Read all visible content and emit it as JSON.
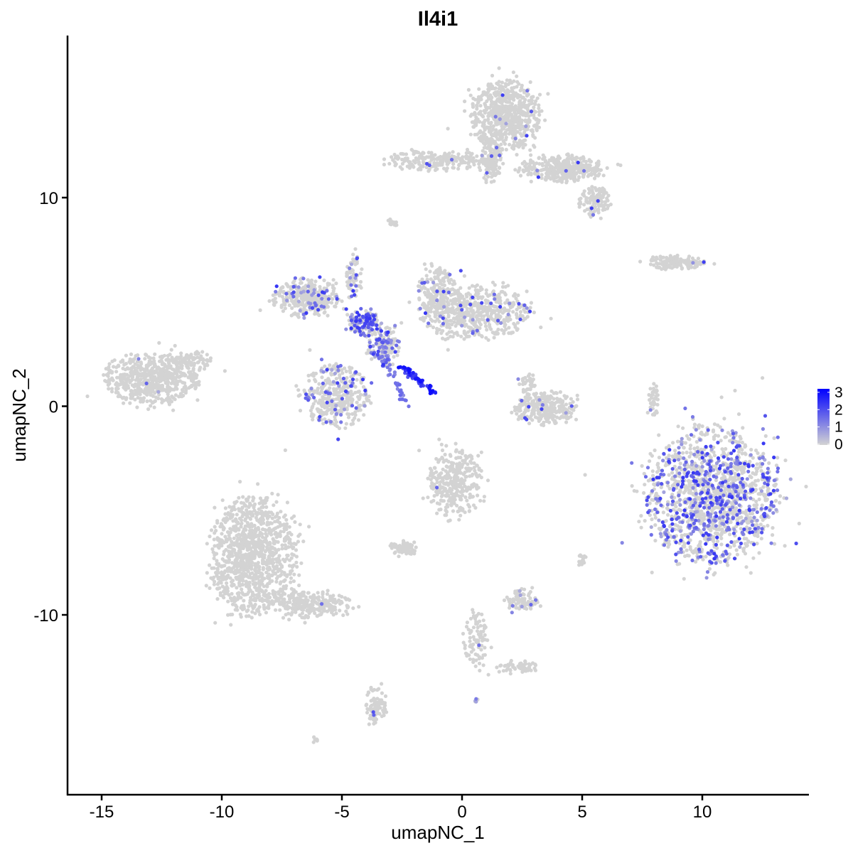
{
  "chart_data": {
    "type": "scatter",
    "title": "Il4i1",
    "xlabel": "umapNC_1",
    "ylabel": "umapNC_2",
    "xlim": [
      -16.4,
      14.4
    ],
    "ylim": [
      -18.2,
      17.8
    ],
    "xticks": [
      -15,
      -10,
      -5,
      0,
      5,
      10
    ],
    "yticks": [
      -10,
      0,
      10
    ],
    "grid": false,
    "legend": {
      "placement": "right",
      "ticks": [
        0,
        1,
        2,
        3
      ],
      "range": [
        0,
        3.2
      ]
    },
    "colors": {
      "low": "#D3D3D3",
      "high": "#0000FF"
    },
    "clusters": [
      {
        "center": [
          1.8,
          13.9
        ],
        "spread": [
          1.35,
          1.6
        ],
        "n": 700,
        "expr_frac": 0.01
      },
      {
        "center": [
          1.2,
          11.8
        ],
        "spread": [
          0.4,
          1.0
        ],
        "n": 120,
        "expr_frac": 0.02
      },
      {
        "center": [
          4.2,
          11.4
        ],
        "spread": [
          1.6,
          0.6
        ],
        "n": 350,
        "expr_frac": 0.01
      },
      {
        "center": [
          5.5,
          9.8
        ],
        "spread": [
          0.6,
          0.7
        ],
        "n": 120,
        "expr_frac": 0.03
      },
      {
        "center": [
          -1.0,
          11.8
        ],
        "spread": [
          2.0,
          0.45
        ],
        "n": 220,
        "expr_frac": 0.02
      },
      {
        "center": [
          -2.9,
          8.8
        ],
        "spread": [
          0.2,
          0.2
        ],
        "n": 15,
        "expr_frac": 0
      },
      {
        "center": [
          -12.9,
          1.3
        ],
        "spread": [
          1.8,
          1.1
        ],
        "n": 600,
        "expr_frac": 0.01
      },
      {
        "center": [
          -11.3,
          2.2
        ],
        "spread": [
          0.9,
          0.4
        ],
        "n": 80,
        "expr_frac": 0
      },
      {
        "center": [
          -8.7,
          -7.2
        ],
        "spread": [
          1.6,
          2.7
        ],
        "n": 1100,
        "expr_frac": 0.003
      },
      {
        "center": [
          -6.3,
          -9.5
        ],
        "spread": [
          1.6,
          0.6
        ],
        "n": 250,
        "expr_frac": 0.01
      },
      {
        "center": [
          -3.6,
          -14.3
        ],
        "spread": [
          0.4,
          0.9
        ],
        "n": 90,
        "expr_frac": 0.02
      },
      {
        "center": [
          10.4,
          -4.3
        ],
        "spread": [
          2.5,
          3.0
        ],
        "n": 1500,
        "expr_frac": 0.32
      },
      {
        "center": [
          -6.5,
          5.2
        ],
        "spread": [
          1.3,
          0.9
        ],
        "n": 350,
        "expr_frac": 0.1
      },
      {
        "center": [
          -5.2,
          0.5
        ],
        "spread": [
          1.3,
          1.4
        ],
        "n": 400,
        "expr_frac": 0.14
      },
      {
        "center": [
          0.5,
          4.5
        ],
        "spread": [
          2.2,
          1.2
        ],
        "n": 550,
        "expr_frac": 0.06
      },
      {
        "center": [
          -1.0,
          5.5
        ],
        "spread": [
          0.8,
          1.0
        ],
        "n": 150,
        "expr_frac": 0.05
      },
      {
        "center": [
          -4.1,
          4.0
        ],
        "spread": [
          0.6,
          0.6
        ],
        "n": 150,
        "expr_frac": 0.55
      },
      {
        "center": [
          -3.3,
          2.9
        ],
        "spread": [
          0.6,
          0.9
        ],
        "n": 160,
        "expr_frac": 0.3
      },
      {
        "center": [
          -4.5,
          6.3
        ],
        "spread": [
          0.3,
          1.0
        ],
        "n": 60,
        "expr_frac": 0.3
      },
      {
        "center": [
          3.5,
          -0.1
        ],
        "spread": [
          1.2,
          0.7
        ],
        "n": 280,
        "expr_frac": 0.03
      },
      {
        "center": [
          2.7,
          1.0
        ],
        "spread": [
          0.4,
          0.5
        ],
        "n": 40,
        "expr_frac": 0.05
      },
      {
        "center": [
          -0.3,
          -3.6
        ],
        "spread": [
          1.0,
          1.6
        ],
        "n": 350,
        "expr_frac": 0.01
      },
      {
        "center": [
          -2.4,
          -6.8
        ],
        "spread": [
          0.5,
          0.3
        ],
        "n": 80,
        "expr_frac": 0
      },
      {
        "center": [
          2.5,
          -9.3
        ],
        "spread": [
          0.6,
          0.5
        ],
        "n": 90,
        "expr_frac": 0.06
      },
      {
        "center": [
          0.6,
          -11.3
        ],
        "spread": [
          0.5,
          1.4
        ],
        "n": 90,
        "expr_frac": 0.02
      },
      {
        "center": [
          2.3,
          -12.5
        ],
        "spread": [
          0.8,
          0.3
        ],
        "n": 60,
        "expr_frac": 0
      },
      {
        "center": [
          8.9,
          6.9
        ],
        "spread": [
          1.1,
          0.3
        ],
        "n": 140,
        "expr_frac": 0.03
      },
      {
        "center": [
          8.0,
          0.3
        ],
        "spread": [
          0.2,
          0.8
        ],
        "n": 40,
        "expr_frac": 0.1
      },
      {
        "center": [
          5.0,
          -7.4
        ],
        "spread": [
          0.2,
          0.3
        ],
        "n": 20,
        "expr_frac": 0
      },
      {
        "center": [
          -6.1,
          -16.0
        ],
        "spread": [
          0.15,
          0.1
        ],
        "n": 6,
        "expr_frac": 0
      },
      {
        "center": [
          0.6,
          -14.1
        ],
        "spread": [
          0.1,
          0.1
        ],
        "n": 5,
        "expr_frac": 0.6
      }
    ],
    "streaks": [
      {
        "from": [
          -2.5,
          1.9
        ],
        "to": [
          -1.2,
          0.7
        ],
        "n": 60,
        "level": 2.8
      },
      {
        "from": [
          -2.3,
          0.0
        ],
        "to": [
          -3.5,
          3.0
        ],
        "n": 40,
        "level": 1.5
      }
    ]
  }
}
